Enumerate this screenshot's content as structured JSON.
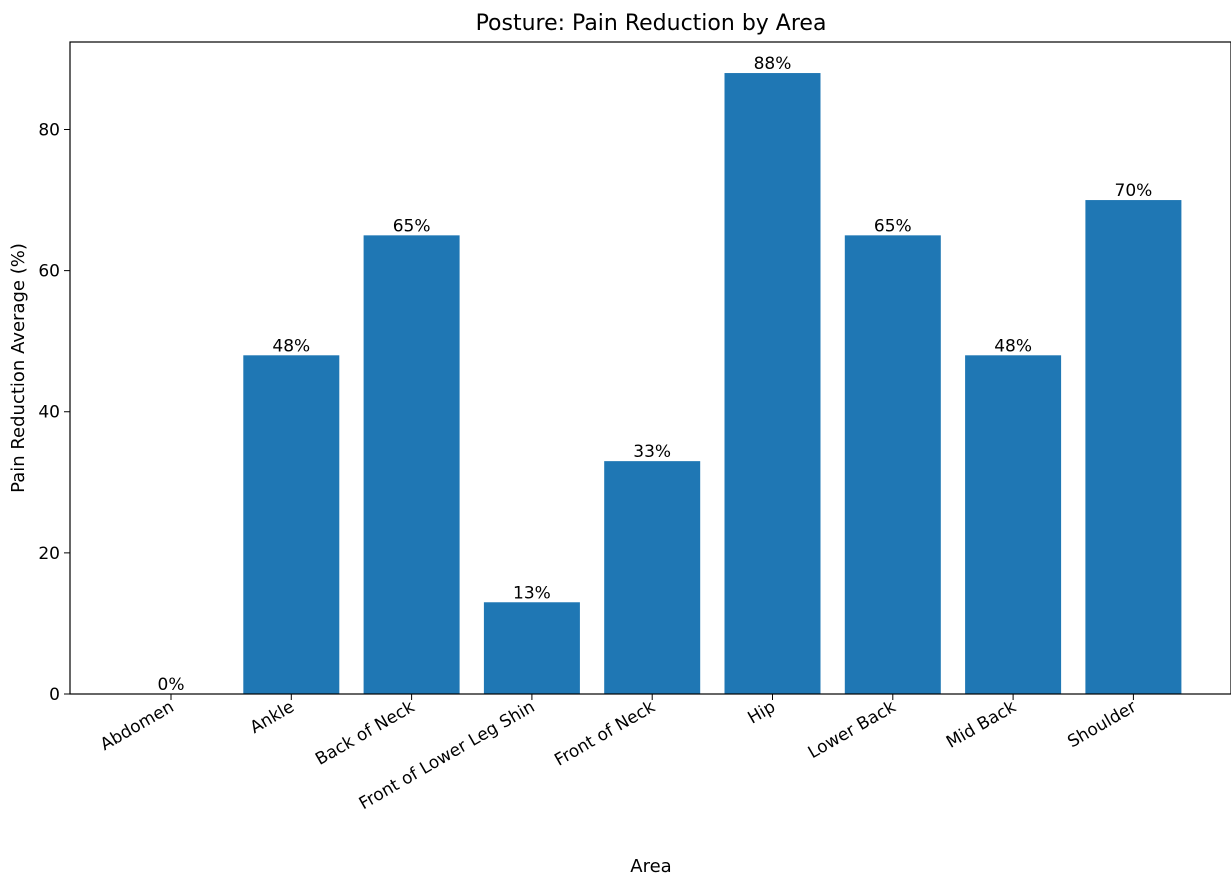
{
  "chart_data": {
    "type": "bar",
    "title": "Posture: Pain Reduction by Area",
    "xlabel": "Area",
    "ylabel": "Pain Reduction Average (%)",
    "categories": [
      "Abdomen",
      "Ankle",
      "Back of Neck",
      "Front of Lower Leg Shin",
      "Front of Neck",
      "Hip",
      "Lower Back",
      "Mid Back",
      "Shoulder"
    ],
    "values": [
      0,
      48,
      65,
      13,
      33,
      88,
      65,
      48,
      70
    ],
    "value_labels": [
      "0%",
      "48%",
      "65%",
      "13%",
      "33%",
      "88%",
      "65%",
      "48%",
      "70%"
    ],
    "ylim": [
      0,
      92.4
    ],
    "yticks": [
      0,
      20,
      40,
      60,
      80
    ],
    "ytick_labels": [
      "0",
      "20",
      "40",
      "60",
      "80"
    ],
    "grid": false,
    "bar_color": "#1f77b4"
  }
}
